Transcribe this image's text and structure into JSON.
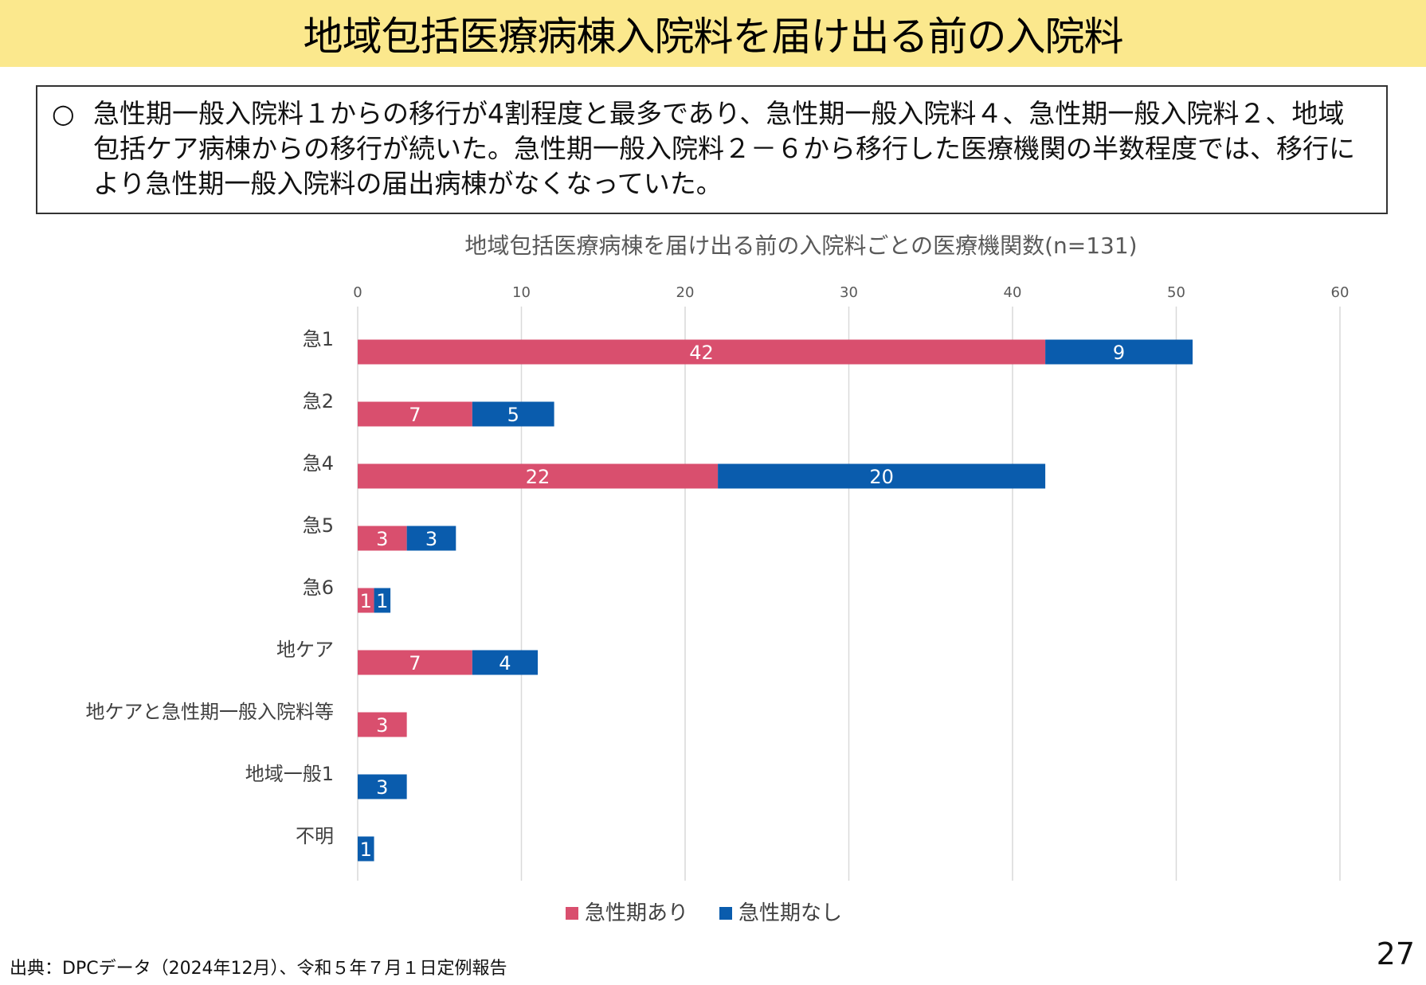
{
  "slide": {
    "title": "地域包括医療病棟入院料を届け出る前の入院料",
    "summary_bullet": "○",
    "summary_text": "急性期一般入院料１からの移行が4割程度と最多であり、急性期一般入院料４、急性期一般入院料２、地域包括ケア病棟からの移行が続いた。急性期一般入院料２－６から移行した医療機関の半数程度では、移行により急性期一般入院料の届出病棟がなくなっていた。",
    "source": "出典：DPCデータ（2024年12月）、令和５年７月１日定例報告",
    "page_number": "27"
  },
  "chart_data": {
    "type": "bar",
    "orientation": "horizontal",
    "stacked": true,
    "title": "地域包括医療病棟を届け出る前の入院料ごとの医療機関数(n=131)",
    "categories": [
      "急1",
      "急2",
      "急4",
      "急5",
      "急6",
      "地ケア",
      "地ケアと急性期一般入院料等",
      "地域一般1",
      "不明"
    ],
    "series": [
      {
        "name": "急性期あり",
        "color": "#d94f6e",
        "values": [
          42,
          7,
          22,
          3,
          1,
          7,
          3,
          0,
          0
        ]
      },
      {
        "name": "急性期なし",
        "color": "#0a5cad",
        "values": [
          9,
          5,
          20,
          3,
          1,
          4,
          0,
          3,
          1
        ]
      }
    ],
    "xlim": [
      0,
      60
    ],
    "xticks": [
      0,
      10,
      20,
      30,
      40,
      50,
      60
    ],
    "axis_position": "top",
    "grid": true,
    "legend": "bottom"
  }
}
